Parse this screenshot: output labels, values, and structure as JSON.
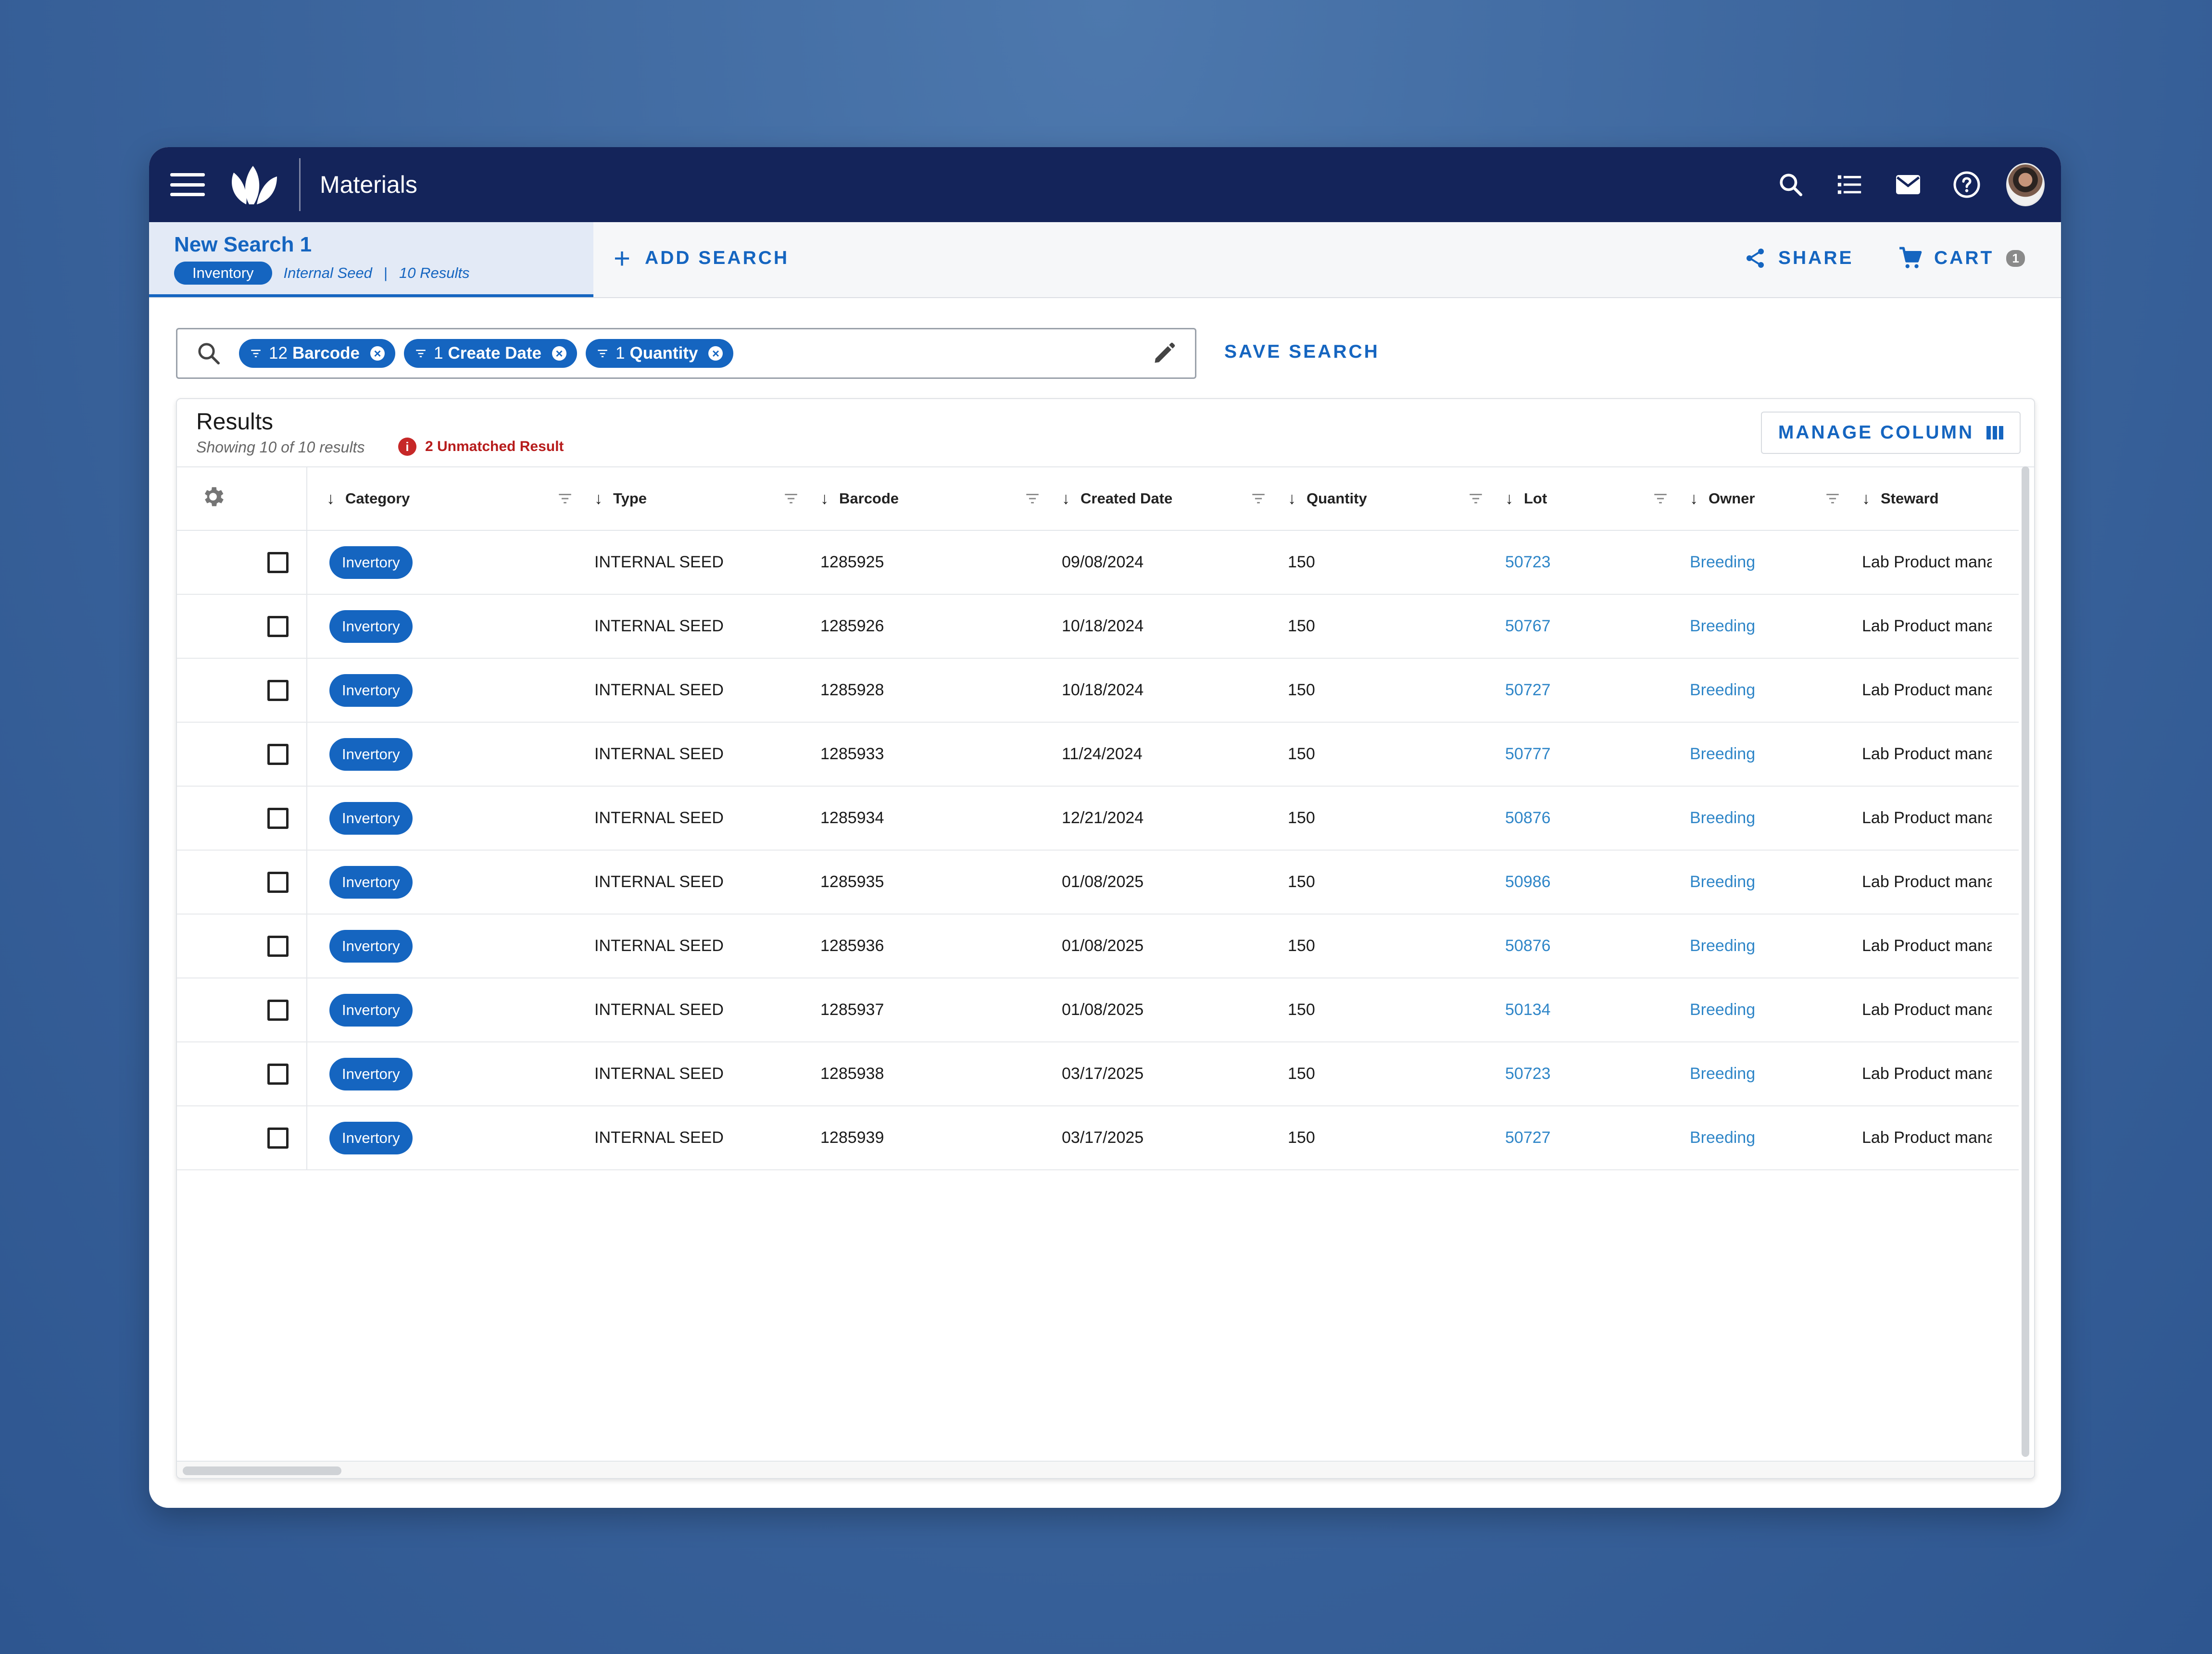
{
  "app": {
    "title": "Materials"
  },
  "search_tabs": {
    "active": {
      "name": "New Search 1",
      "category": "Inventory",
      "type": "Internal Seed",
      "count": "10 Results"
    },
    "add_label": "ADD SEARCH",
    "share_label": "SHARE",
    "cart_label": "CART",
    "cart_count": "1"
  },
  "filters": [
    {
      "count": "12",
      "label": "Barcode"
    },
    {
      "count": "1",
      "label": "Create Date"
    },
    {
      "count": "1",
      "label": "Quantity"
    }
  ],
  "save_search_label": "SAVE SEARCH",
  "results": {
    "title": "Results",
    "subtitle": "Showing 10 of 10 results",
    "unmatched": "2 Unmatched Result",
    "manage_column_label": "MANAGE COLUMN",
    "columns": [
      "Category",
      "Type",
      "Barcode",
      "Created Date",
      "Quantity",
      "Lot",
      "Owner",
      "Steward"
    ],
    "rows": [
      {
        "category": "Invertory",
        "type": "INTERNAL SEED",
        "barcode": "1285925",
        "created": "09/08/2024",
        "quantity": "150",
        "lot": "50723",
        "owner": "Breeding",
        "steward": "Lab Product manager"
      },
      {
        "category": "Invertory",
        "type": "INTERNAL SEED",
        "barcode": "1285926",
        "created": "10/18/2024",
        "quantity": "150",
        "lot": "50767",
        "owner": "Breeding",
        "steward": "Lab Product manager"
      },
      {
        "category": "Invertory",
        "type": "INTERNAL SEED",
        "barcode": "1285928",
        "created": "10/18/2024",
        "quantity": "150",
        "lot": "50727",
        "owner": "Breeding",
        "steward": "Lab Product manager"
      },
      {
        "category": "Invertory",
        "type": "INTERNAL SEED",
        "barcode": "1285933",
        "created": "11/24/2024",
        "quantity": "150",
        "lot": "50777",
        "owner": "Breeding",
        "steward": "Lab Product manager"
      },
      {
        "category": "Invertory",
        "type": "INTERNAL SEED",
        "barcode": "1285934",
        "created": "12/21/2024",
        "quantity": "150",
        "lot": "50876",
        "owner": "Breeding",
        "steward": "Lab Product manager"
      },
      {
        "category": "Invertory",
        "type": "INTERNAL SEED",
        "barcode": "1285935",
        "created": "01/08/2025",
        "quantity": "150",
        "lot": "50986",
        "owner": "Breeding",
        "steward": "Lab Product manager"
      },
      {
        "category": "Invertory",
        "type": "INTERNAL SEED",
        "barcode": "1285936",
        "created": "01/08/2025",
        "quantity": "150",
        "lot": "50876",
        "owner": "Breeding",
        "steward": "Lab Product manager"
      },
      {
        "category": "Invertory",
        "type": "INTERNAL SEED",
        "barcode": "1285937",
        "created": "01/08/2025",
        "quantity": "150",
        "lot": "50134",
        "owner": "Breeding",
        "steward": "Lab Product manager"
      },
      {
        "category": "Invertory",
        "type": "INTERNAL SEED",
        "barcode": "1285938",
        "created": "03/17/2025",
        "quantity": "150",
        "lot": "50723",
        "owner": "Breeding",
        "steward": "Lab Product manager"
      },
      {
        "category": "Invertory",
        "type": "INTERNAL SEED",
        "barcode": "1285939",
        "created": "03/17/2025",
        "quantity": "150",
        "lot": "50727",
        "owner": "Breeding",
        "steward": "Lab Product manager"
      }
    ]
  },
  "icons": {
    "menu": "hamburger-icon",
    "logo": "leaf-logo",
    "search": "search-icon",
    "list": "list-icon",
    "mail": "mail-icon",
    "help": "help-icon",
    "share": "share-icon",
    "cart": "cart-icon",
    "edit": "pencil-icon",
    "settings": "gear-icon"
  },
  "colors": {
    "appbar": "#14245a",
    "accent": "#1565c0",
    "link": "#2f86c8",
    "error": "#c62828"
  }
}
